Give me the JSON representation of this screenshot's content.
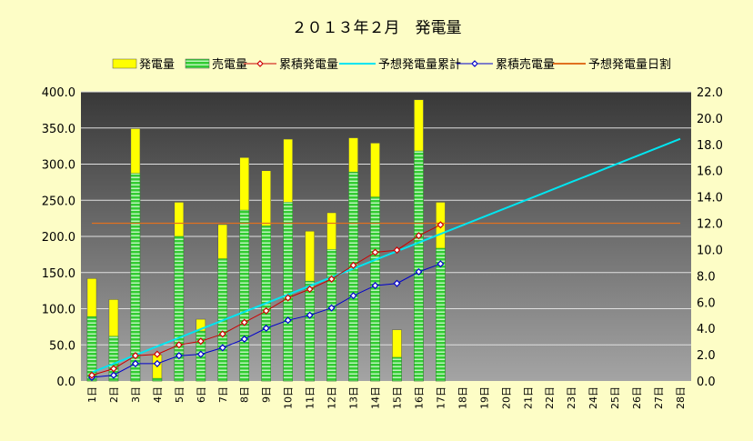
{
  "chart_data": {
    "type": "bar",
    "title": "２０１３年２月　発電量",
    "categories": [
      "1日",
      "2日",
      "3日",
      "4日",
      "5日",
      "6日",
      "7日",
      "8日",
      "9日",
      "10日",
      "11日",
      "12日",
      "13日",
      "14日",
      "15日",
      "16日",
      "17日",
      "18日",
      "19日",
      "20日",
      "21日",
      "22日",
      "23日",
      "24日",
      "25日",
      "26日",
      "27日",
      "28日"
    ],
    "y_left": {
      "min": 0,
      "max": 400,
      "step": 50,
      "ticks": [
        "0.0",
        "50.0",
        "100.0",
        "150.0",
        "200.0",
        "250.0",
        "300.0",
        "350.0",
        "400.0"
      ]
    },
    "y_right": {
      "min": 0,
      "max": 22,
      "step": 2,
      "ticks": [
        "0.0",
        "2.0",
        "4.0",
        "6.0",
        "8.0",
        "10.0",
        "12.0",
        "14.0",
        "16.0",
        "18.0",
        "20.0",
        "22.0"
      ]
    },
    "legend_position": "top",
    "grid": true,
    "series": [
      {
        "name": "発電量",
        "kind": "bar",
        "axis": "right",
        "color": "#ffff00",
        "values": [
          7.8,
          6.2,
          19.2,
          2.0,
          13.6,
          4.7,
          11.9,
          17.0,
          16.0,
          18.4,
          11.4,
          12.8,
          18.5,
          18.1,
          3.9,
          21.4,
          13.6,
          null,
          null,
          null,
          null,
          null,
          null,
          null,
          null,
          null,
          null,
          null
        ]
      },
      {
        "name": "売電量",
        "kind": "bar",
        "axis": "right",
        "color": "#33cc33",
        "values": [
          4.9,
          3.4,
          15.8,
          0.2,
          11.0,
          3.8,
          9.3,
          13.0,
          11.8,
          13.6,
          7.6,
          10.0,
          15.9,
          14.0,
          1.8,
          17.5,
          10.1,
          null,
          null,
          null,
          null,
          null,
          null,
          null,
          null,
          null,
          null,
          null
        ]
      },
      {
        "name": "累積発電量",
        "kind": "line",
        "axis": "left",
        "color": "#cc0000",
        "values": [
          8,
          17,
          35,
          37,
          50,
          55,
          65,
          81,
          97,
          115,
          127,
          141,
          160,
          178,
          181,
          201,
          216,
          null,
          null,
          null,
          null,
          null,
          null,
          null,
          null,
          null,
          null,
          null
        ]
      },
      {
        "name": "予想発電量累計",
        "kind": "line",
        "axis": "left",
        "color": "#00e5f0",
        "values": [
          12.0,
          23.9,
          35.9,
          47.9,
          59.8,
          71.8,
          83.8,
          95.7,
          107.7,
          119.6,
          131.6,
          143.6,
          155.5,
          167.5,
          179.5,
          191.4,
          203.4,
          215.4,
          227.3,
          239.3,
          251.2,
          263.2,
          275.2,
          287.1,
          299.1,
          311.1,
          323.0,
          335.0
        ]
      },
      {
        "name": "累積売電量",
        "kind": "line",
        "axis": "left",
        "color": "#0000cc",
        "values": [
          5,
          8,
          24,
          24,
          35,
          37,
          46,
          58,
          73,
          84,
          91,
          101,
          118,
          132,
          135,
          151,
          162,
          null,
          null,
          null,
          null,
          null,
          null,
          null,
          null,
          null,
          null,
          null
        ]
      },
      {
        "name": "予想発電量日割",
        "kind": "line",
        "axis": "right",
        "color": "#e07020",
        "values": [
          12.0,
          12.0,
          12.0,
          12.0,
          12.0,
          12.0,
          12.0,
          12.0,
          12.0,
          12.0,
          12.0,
          12.0,
          12.0,
          12.0,
          12.0,
          12.0,
          12.0,
          12.0,
          12.0,
          12.0,
          12.0,
          12.0,
          12.0,
          12.0,
          12.0,
          12.0,
          12.0,
          12.0
        ]
      }
    ]
  }
}
